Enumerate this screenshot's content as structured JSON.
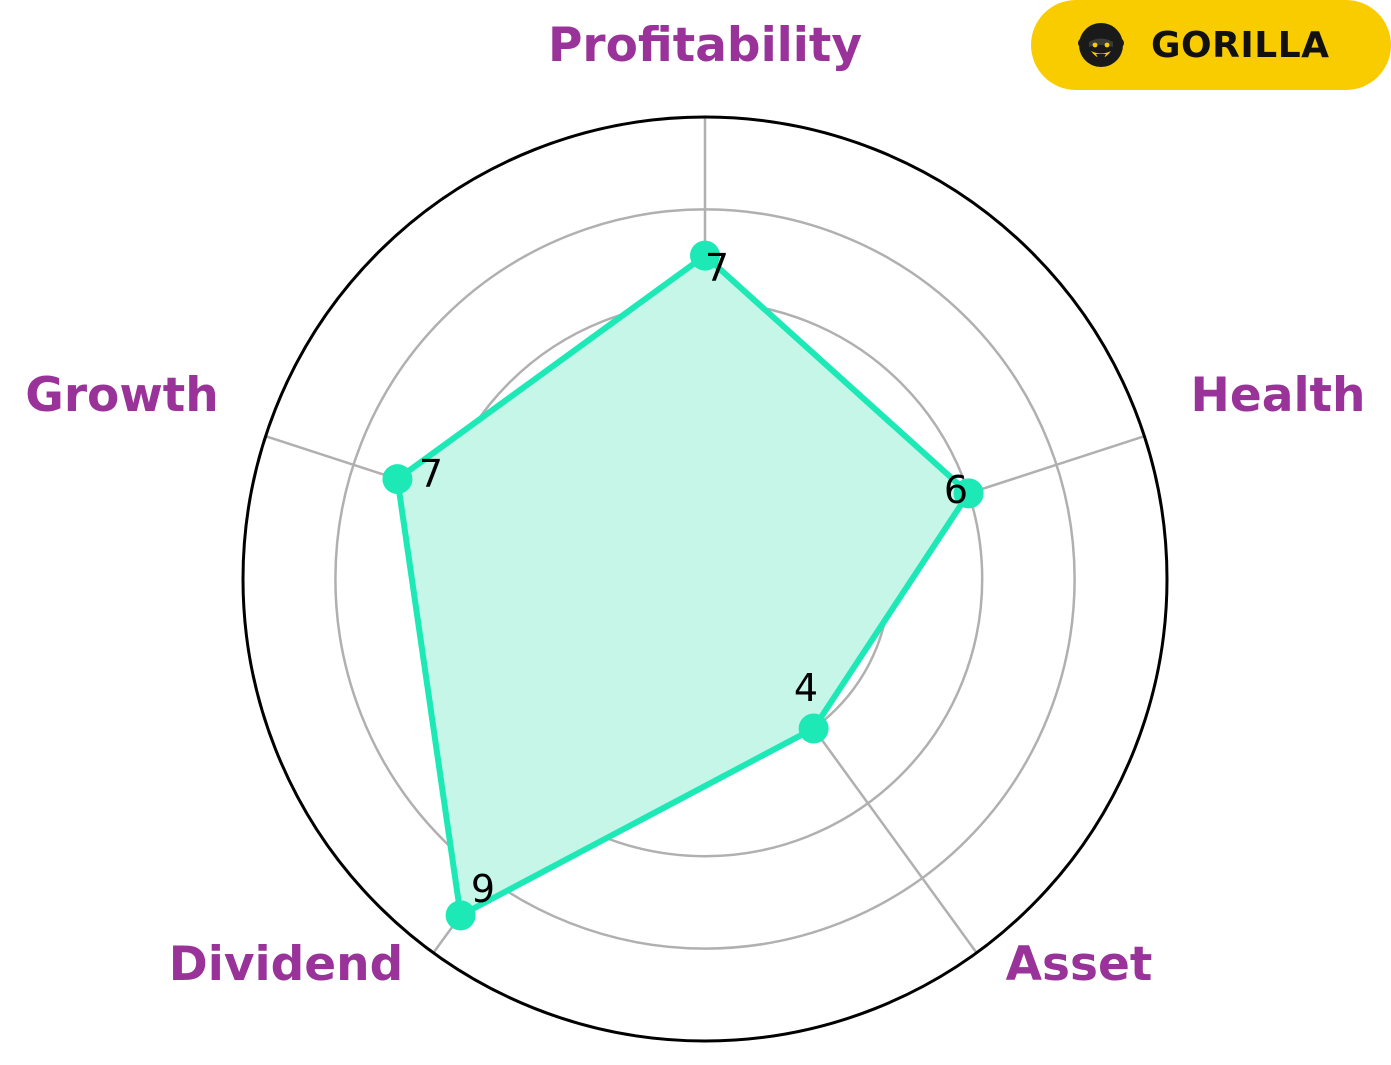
{
  "brand": {
    "name": "GORILLA",
    "logo_icon": "gorilla-face-icon",
    "background_color": "#f9cc00",
    "text_color": "#111111"
  },
  "chart_data": {
    "type": "radar",
    "title": "",
    "axes": [
      "Profitability",
      "Health",
      "Asset",
      "Dividend",
      "Growth"
    ],
    "values": [
      7,
      6,
      4,
      9,
      7
    ],
    "value_labels": [
      "7",
      "6",
      "4",
      "9",
      "7"
    ],
    "rmax": 10,
    "grid_rings": [
      2,
      4,
      6,
      8
    ],
    "grid": true,
    "legend": "none",
    "colors": {
      "series": "#1de9b6",
      "fill": "#c6f6e8",
      "axis_label": "#993399",
      "grid": "#b0b0b0",
      "outer_ring": "#000000"
    }
  }
}
